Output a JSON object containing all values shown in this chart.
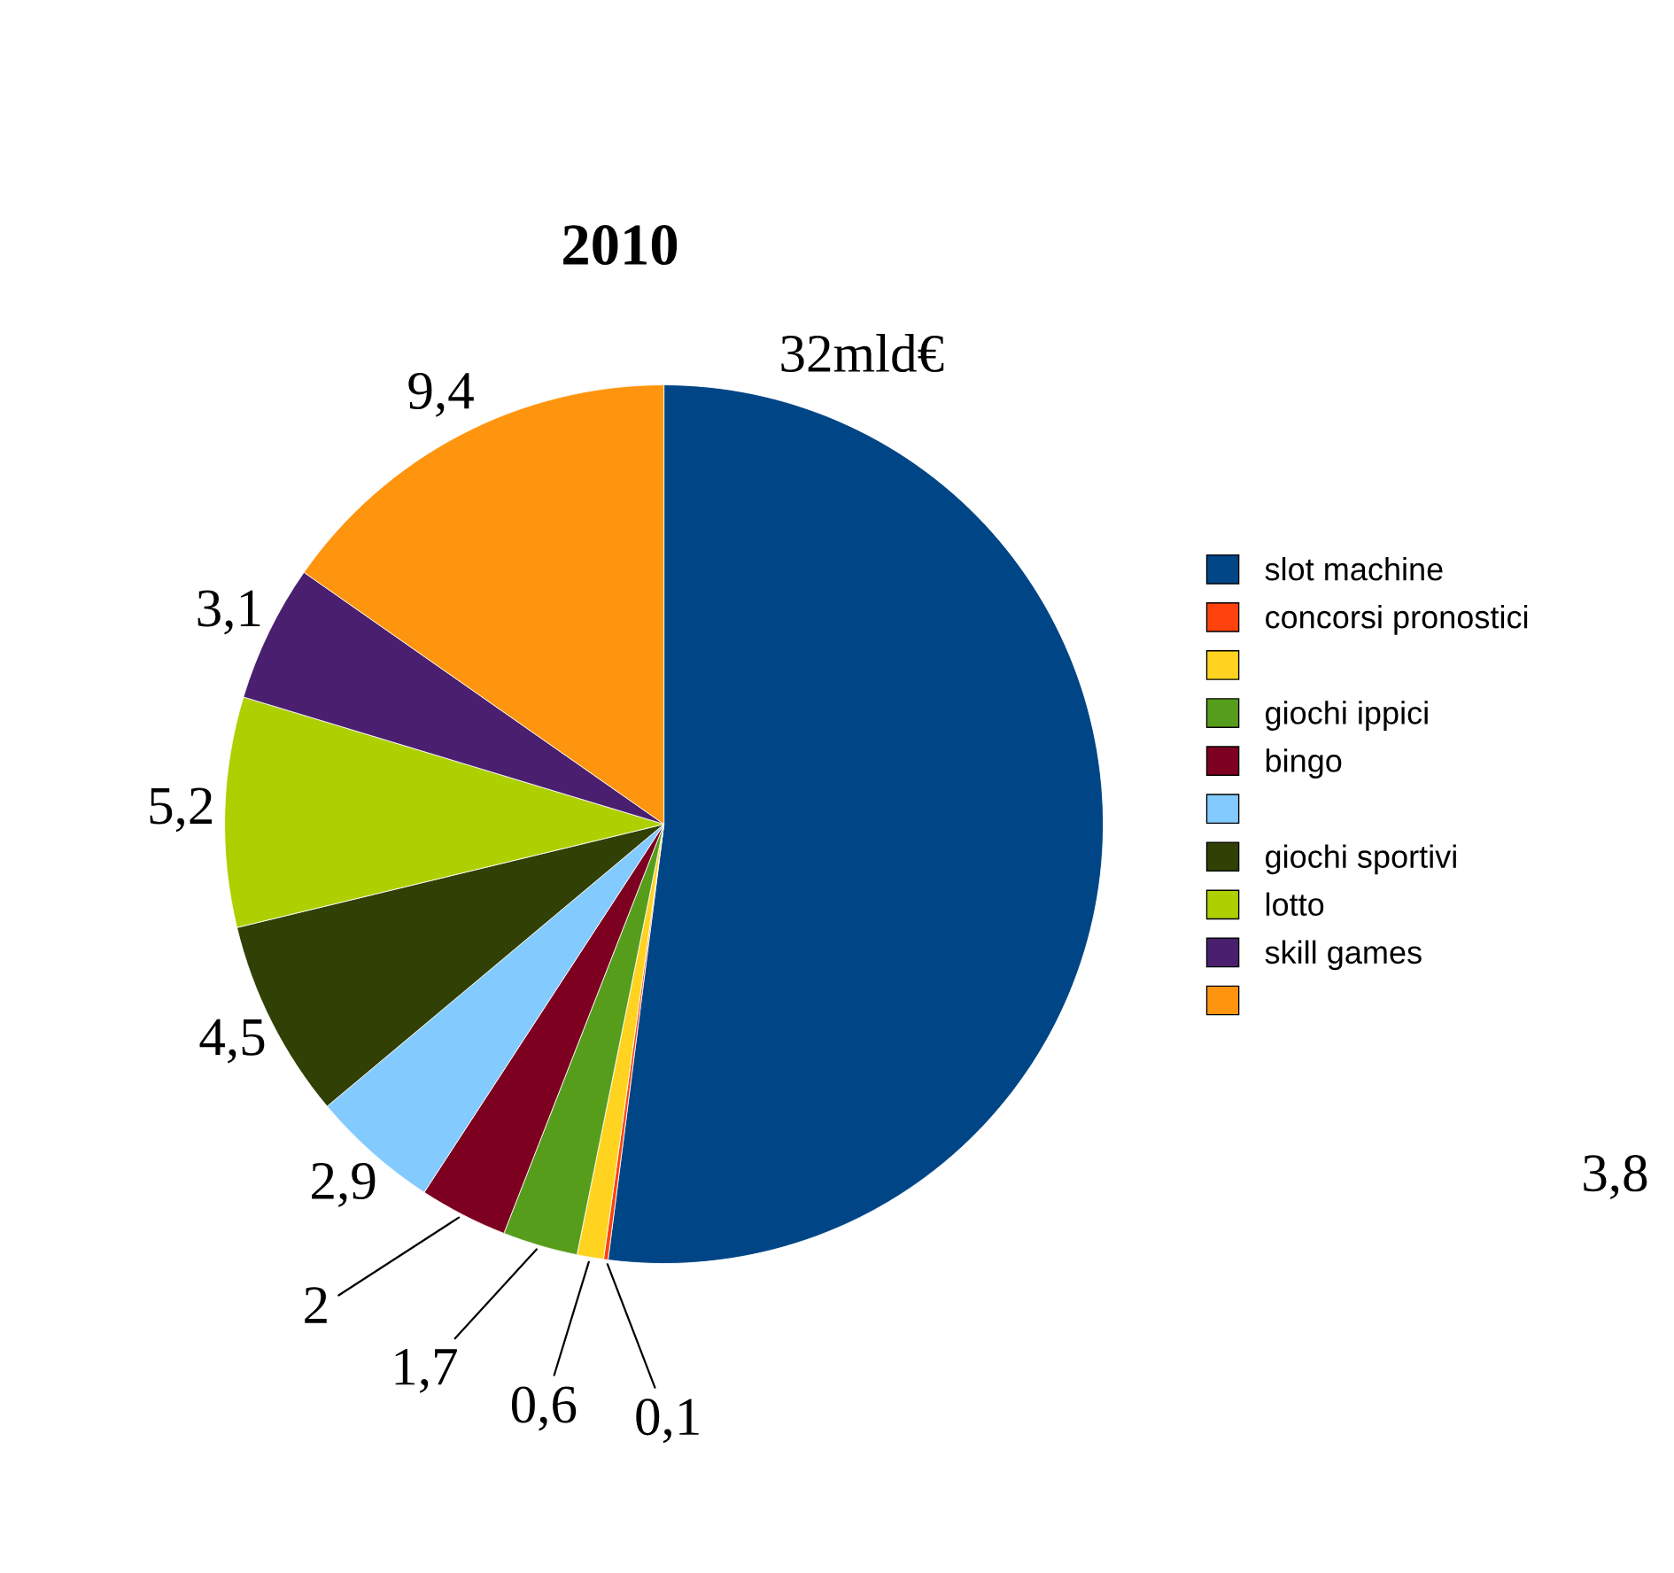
{
  "chart_data": {
    "type": "pie",
    "title": "2010",
    "categories": [
      "slot machine",
      "concorsi pronostici",
      null,
      "giochi ippici",
      "bingo",
      null,
      "giochi sportivi",
      "lotto",
      "skill games",
      null
    ],
    "values": [
      32,
      0.1,
      0.6,
      1.7,
      2,
      2.9,
      4.5,
      5.2,
      3.1,
      9.4
    ],
    "value_labels": [
      "32mld€",
      "0,1",
      "0,6",
      "1,7",
      "2",
      "2,9",
      "4,5",
      "5,2",
      "3,1",
      "9,4"
    ],
    "colors": [
      "#004586",
      "#ff420e",
      "#ffd320",
      "#579d1c",
      "#7e0021",
      "#83caff",
      "#314004",
      "#aecf00",
      "#4b1f6f",
      "#ff950e"
    ],
    "legend": "right",
    "annotations": [
      "3,8"
    ]
  }
}
